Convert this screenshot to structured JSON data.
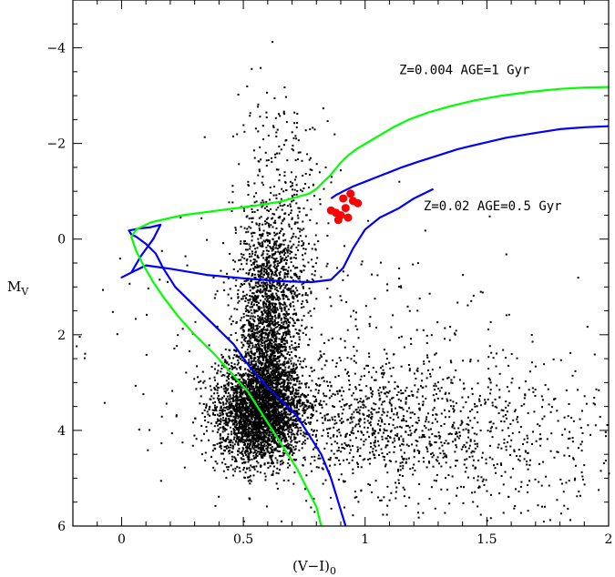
{
  "chart_data": {
    "type": "scatter",
    "title": "",
    "xlabel": "(V−I)",
    "xlabel_sub": "0",
    "ylabel": "M",
    "ylabel_sub": "V",
    "xlim": [
      -0.2,
      2.0
    ],
    "ylim": [
      6.0,
      -5.0
    ],
    "y_inverted": true,
    "grid": false,
    "x_ticks": [
      0,
      0.5,
      1,
      1.5,
      2
    ],
    "x_tick_labels": [
      "0",
      "0.5",
      "1",
      "1.5",
      "2"
    ],
    "y_ticks": [
      -4,
      -2,
      0,
      2,
      4,
      6
    ],
    "y_tick_labels": [
      "−4",
      "−2",
      "0",
      "2",
      "4",
      "6"
    ],
    "colors": {
      "field_stars": "#000000",
      "iso_young": "#0000ff",
      "iso_old": "#00ff00",
      "clump_stars": "#ff0000"
    },
    "annotations": [
      {
        "text": "Z=0.004  AGE=1 Gyr",
        "x": 1.14,
        "y": -3.45
      },
      {
        "text": "Z=0.02  AGE=0.5 Gyr",
        "x": 1.24,
        "y": -0.6
      }
    ],
    "series": [
      {
        "kind": "isochrone",
        "color": "#0000ff",
        "x": [
          0.92,
          0.89,
          0.86,
          0.82,
          0.77,
          0.72,
          0.66,
          0.6,
          0.53,
          0.46,
          0.38,
          0.3,
          0.22,
          0.17,
          0.14,
          0.1,
          0.06,
          0.04,
          0.03,
          0.07,
          0.12,
          0.16,
          0.13,
          0.08,
          0.04,
          0.0,
          0.04,
          0.1,
          0.2,
          0.35,
          0.5,
          0.65,
          0.78,
          0.86,
          0.91,
          0.95,
          1.0,
          1.06,
          1.14,
          1.2,
          1.28
        ],
        "y": [
          6.0,
          5.5,
          5.0,
          4.5,
          4.1,
          3.7,
          3.4,
          3.1,
          2.7,
          2.2,
          1.8,
          1.4,
          1.0,
          0.6,
          0.3,
          0.1,
          -0.05,
          -0.1,
          -0.18,
          -0.22,
          -0.25,
          -0.3,
          0.0,
          0.35,
          0.7,
          0.8,
          0.7,
          0.55,
          0.62,
          0.75,
          0.82,
          0.88,
          0.9,
          0.85,
          0.6,
          0.2,
          -0.2,
          -0.45,
          -0.65,
          -0.85,
          -1.05
        ]
      },
      {
        "kind": "isochrone",
        "color": "#00ff00",
        "x": [
          0.82,
          0.8,
          0.76,
          0.72,
          0.67,
          0.62,
          0.57,
          0.52,
          0.45,
          0.38,
          0.3,
          0.23,
          0.17,
          0.13,
          0.09,
          0.06,
          0.04,
          0.06,
          0.12,
          0.25,
          0.4,
          0.55,
          0.65,
          0.72,
          0.77,
          0.8,
          0.83,
          0.86,
          0.88
        ],
        "y": [
          6.0,
          5.6,
          5.2,
          4.8,
          4.4,
          4.0,
          3.6,
          3.2,
          2.8,
          2.4,
          2.0,
          1.6,
          1.2,
          0.9,
          0.55,
          0.25,
          -0.05,
          -0.2,
          -0.35,
          -0.5,
          -0.6,
          -0.7,
          -0.78,
          -0.88,
          -0.95,
          -1.05,
          -1.2,
          -1.35,
          -1.48
        ]
      },
      {
        "kind": "giant-branch",
        "color": "#0000ff",
        "x": [
          0.86,
          0.88,
          0.91,
          0.95,
          1.0,
          1.05,
          1.1,
          1.15,
          1.22,
          1.3,
          1.38,
          1.48,
          1.58,
          1.7,
          1.8,
          1.9,
          2.0
        ],
        "y": [
          -0.85,
          -0.92,
          -1.0,
          -1.1,
          -1.2,
          -1.3,
          -1.4,
          -1.5,
          -1.62,
          -1.75,
          -1.88,
          -2.0,
          -2.12,
          -2.22,
          -2.3,
          -2.34,
          -2.36
        ]
      },
      {
        "kind": "giant-branch",
        "color": "#00ff00",
        "x": [
          0.88,
          0.9,
          0.93,
          0.97,
          1.02,
          1.07,
          1.12,
          1.18,
          1.26,
          1.35,
          1.45,
          1.56,
          1.68,
          1.8,
          1.9,
          2.0
        ],
        "y": [
          -1.48,
          -1.6,
          -1.75,
          -1.9,
          -2.05,
          -2.2,
          -2.35,
          -2.5,
          -2.65,
          -2.78,
          -2.9,
          -3.0,
          -3.08,
          -3.14,
          -3.17,
          -3.18
        ]
      },
      {
        "kind": "clump",
        "color": "#ff0000",
        "x": [
          0.86,
          0.9,
          0.93,
          0.88,
          0.91,
          0.95,
          0.97,
          0.92,
          0.89,
          0.94
        ],
        "y": [
          -0.6,
          -0.5,
          -0.45,
          -0.55,
          -0.85,
          -0.8,
          -0.75,
          -0.65,
          -0.4,
          -0.95
        ]
      }
    ]
  }
}
